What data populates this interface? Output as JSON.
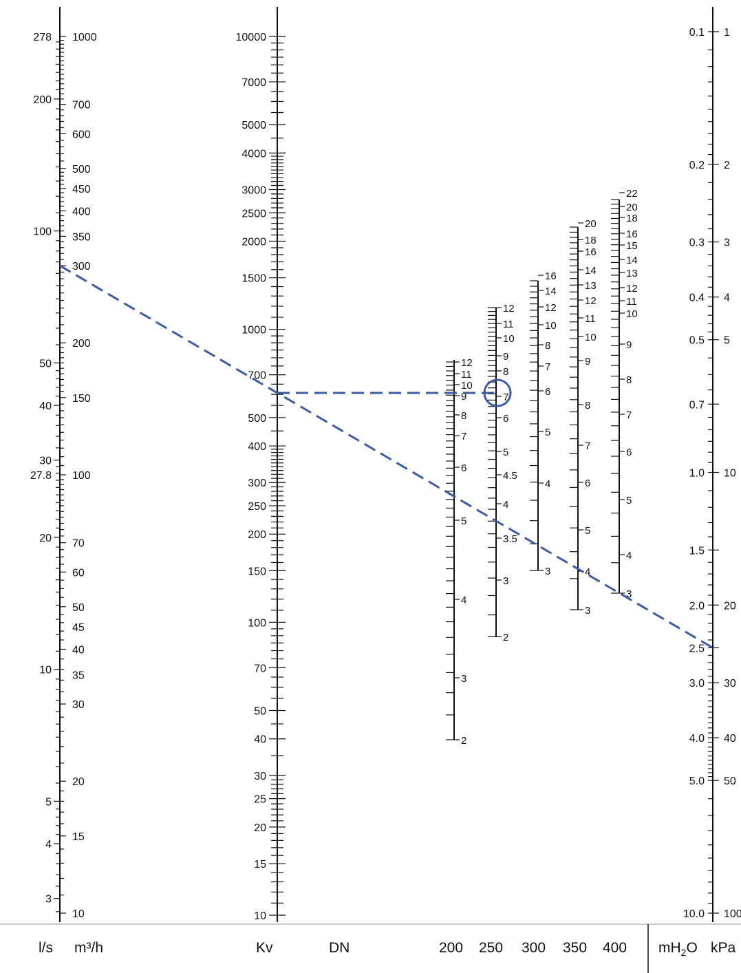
{
  "footer": {
    "ls": "l/s",
    "m3h": "m³/h",
    "kv": "Kv",
    "dn": "DN",
    "dn_sizes": [
      "200",
      "250",
      "300",
      "350",
      "400"
    ],
    "mh2o": "mH",
    "mh2o_sub": "2",
    "mh2o_end": "O",
    "kpa": "kPa"
  },
  "colors": {
    "line": "#3b5ba5",
    "axis": "#111111",
    "rule": "#bbbbbb"
  },
  "scales": {
    "ls": [
      "278",
      "200",
      "100",
      "50",
      "40",
      "30",
      "27.8",
      "20",
      "10",
      "5",
      "4",
      "3"
    ],
    "m3h": [
      "1000",
      "700",
      "600",
      "500",
      "450",
      "400",
      "350",
      "300",
      "200",
      "150",
      "100",
      "70",
      "60",
      "50",
      "45",
      "40",
      "35",
      "30",
      "20",
      "15",
      "10"
    ],
    "kv": [
      "10000",
      "7000",
      "5000",
      "4000",
      "3000",
      "2500",
      "2000",
      "1500",
      "1000",
      "700",
      "500",
      "400",
      "300",
      "250",
      "200",
      "150",
      "100",
      "70",
      "50",
      "40",
      "30",
      "25",
      "20",
      "15",
      "10"
    ],
    "dn200": [
      "12",
      "11",
      "10",
      "9",
      "8",
      "7",
      "6",
      "5",
      "4",
      "3",
      "2"
    ],
    "dn250": [
      "12",
      "11",
      "10",
      "9",
      "8",
      "7",
      "6",
      "5",
      "4.5",
      "4",
      "3.5",
      "3",
      "2"
    ],
    "dn300": [
      "16",
      "14",
      "12",
      "10",
      "8",
      "7",
      "6",
      "5",
      "4",
      "3"
    ],
    "dn350": [
      "20",
      "18",
      "16",
      "14",
      "13",
      "12",
      "11",
      "10",
      "9",
      "8",
      "7",
      "6",
      "5",
      "4",
      "3"
    ],
    "dn400": [
      "22",
      "20",
      "18",
      "16",
      "15",
      "14",
      "13",
      "12",
      "11",
      "10",
      "9",
      "8",
      "7",
      "6",
      "5",
      "4",
      "3"
    ],
    "mh2o": [
      "0.1",
      "0.2",
      "0.3",
      "0.4",
      "0.5",
      "0.7",
      "1.0",
      "1.5",
      "2.0",
      "2.5",
      "3.0",
      "4.0",
      "5.0",
      "10.0"
    ],
    "kpa": [
      "1",
      "2",
      "3",
      "4",
      "5",
      "10",
      "20",
      "30",
      "40",
      "50",
      "100"
    ]
  },
  "example": {
    "flow_m3h": 300,
    "kv": 600,
    "dn": "250",
    "dn_velocity_reading": "7",
    "pressure_drop_mh2o": 2.5,
    "pressure_drop_kpa": 25
  }
}
